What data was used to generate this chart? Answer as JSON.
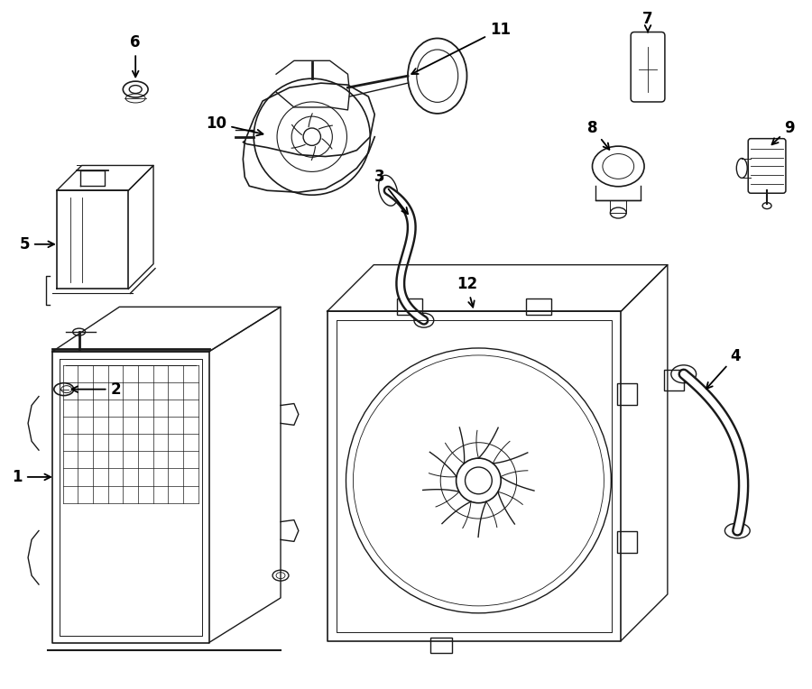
{
  "background": "#ffffff",
  "line_color": "#1a1a1a",
  "line_width": 1.0,
  "label_fontsize": 12,
  "label_fontweight": "bold"
}
